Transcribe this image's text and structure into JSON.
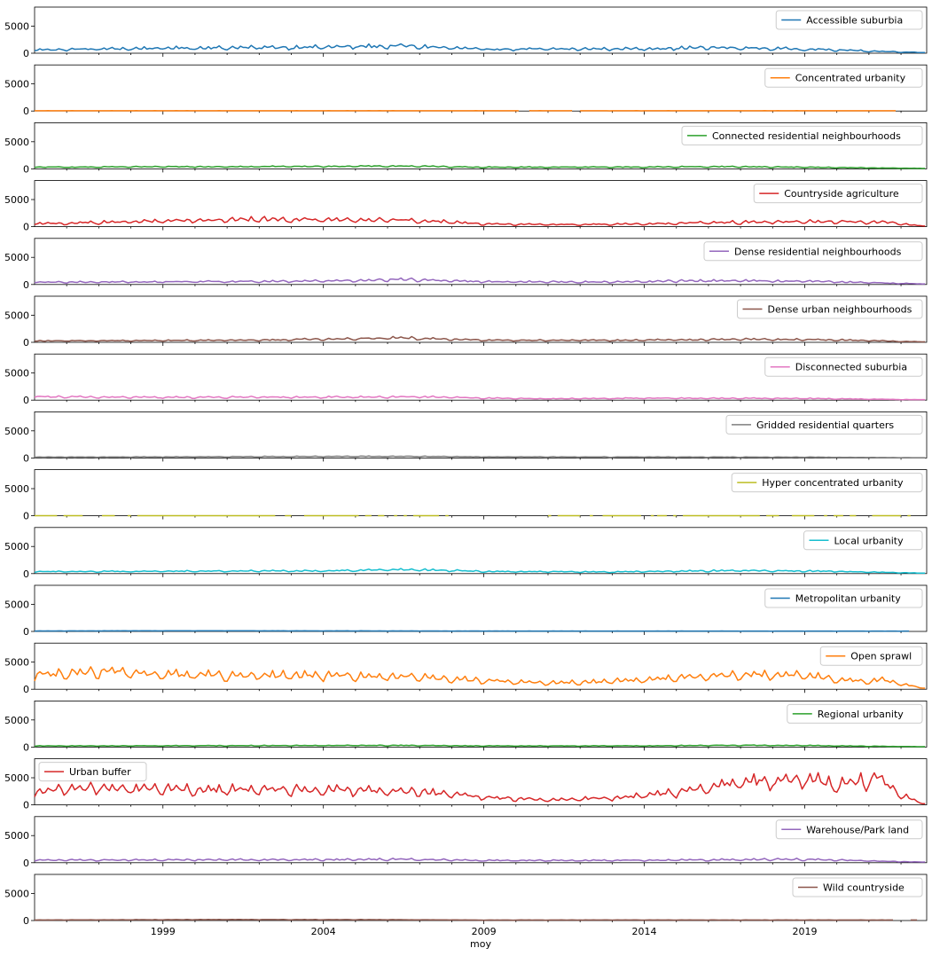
{
  "chart_data": {
    "type": "line",
    "layout": "16 stacked subplots sharing x axis (monthly, 1995–2022), each with its own legend",
    "xlabel": "moy",
    "x_tick_labels": [
      "1999",
      "2004",
      "2009",
      "2014",
      "2019"
    ],
    "x_tick_years": [
      1999,
      2004,
      2009,
      2014,
      2019
    ],
    "xlim_years": [
      1995,
      2022.8
    ],
    "ylim": [
      0,
      8500
    ],
    "y_tick_labels": [
      "0",
      "5000"
    ],
    "y_ticks": [
      0,
      5000
    ],
    "grid": false,
    "series": [
      {
        "name": "Accessible suburbia",
        "color": "#1f77b4",
        "legend": "top-right",
        "shape": [
          [
            1995,
            600
          ],
          [
            1999,
            900
          ],
          [
            2004,
            1100
          ],
          [
            2006.5,
            1300
          ],
          [
            2009,
            700
          ],
          [
            2014,
            800
          ],
          [
            2016,
            1000
          ],
          [
            2019,
            750
          ],
          [
            2021.5,
            300
          ],
          [
            2022.7,
            120
          ]
        ],
        "noise": 0.35,
        "seasonal": 0.25
      },
      {
        "name": "Concentrated urbanity",
        "color": "#ff7f0e",
        "legend": "top-right",
        "shape": [
          [
            1995,
            50
          ],
          [
            2022,
            50
          ]
        ],
        "noise": 0.2,
        "seasonal": 0.1,
        "end": 2021.9,
        "gaps": [
          [
            2010.15,
            2010.4
          ],
          [
            2011.8,
            2012.0
          ]
        ]
      },
      {
        "name": "Connected residential neighbourhoods",
        "color": "#2ca02c",
        "legend": "top-right",
        "shape": [
          [
            1995,
            300
          ],
          [
            2004,
            450
          ],
          [
            2006.5,
            500
          ],
          [
            2009,
            300
          ],
          [
            2014,
            330
          ],
          [
            2016.5,
            400
          ],
          [
            2019,
            300
          ],
          [
            2022.7,
            80
          ]
        ],
        "noise": 0.3,
        "seasonal": 0.2
      },
      {
        "name": "Countryside agriculture",
        "color": "#d62728",
        "legend": "top-right",
        "shape": [
          [
            1995,
            500
          ],
          [
            1999,
            1000
          ],
          [
            2002,
            1300
          ],
          [
            2004,
            1200
          ],
          [
            2007,
            1100
          ],
          [
            2009,
            500
          ],
          [
            2011,
            350
          ],
          [
            2014,
            500
          ],
          [
            2017,
            800
          ],
          [
            2020,
            900
          ],
          [
            2021.5,
            800
          ],
          [
            2022.7,
            100
          ]
        ],
        "noise": 0.35,
        "seasonal": 0.3
      },
      {
        "name": "Dense residential neighbourhoods",
        "color": "#9467bd",
        "legend": "top-right",
        "shape": [
          [
            1995,
            400
          ],
          [
            2003,
            550
          ],
          [
            2006.5,
            900
          ],
          [
            2009,
            500
          ],
          [
            2013,
            450
          ],
          [
            2016,
            700
          ],
          [
            2019,
            600
          ],
          [
            2022.7,
            100
          ]
        ],
        "noise": 0.35,
        "seasonal": 0.25
      },
      {
        "name": "Dense urban neighbourhoods",
        "color": "#8c564b",
        "legend": "top-right",
        "shape": [
          [
            1995,
            250
          ],
          [
            2002,
            400
          ],
          [
            2006.5,
            800
          ],
          [
            2009,
            400
          ],
          [
            2013,
            350
          ],
          [
            2017,
            550
          ],
          [
            2020,
            450
          ],
          [
            2022.7,
            80
          ]
        ],
        "noise": 0.35,
        "seasonal": 0.25
      },
      {
        "name": "Disconnected suburbia",
        "color": "#e377c2",
        "legend": "top-right",
        "shape": [
          [
            1995,
            600
          ],
          [
            1999,
            500
          ],
          [
            2005,
            550
          ],
          [
            2007,
            600
          ],
          [
            2009,
            350
          ],
          [
            2011,
            250
          ],
          [
            2014,
            350
          ],
          [
            2019,
            300
          ],
          [
            2022.7,
            80
          ]
        ],
        "noise": 0.3,
        "seasonal": 0.25
      },
      {
        "name": "Gridded residential quarters",
        "color": "#7f7f7f",
        "legend": "top-right",
        "shape": [
          [
            1995,
            150
          ],
          [
            2006.5,
            300
          ],
          [
            2009,
            200
          ],
          [
            2014,
            180
          ],
          [
            2019,
            150
          ],
          [
            2022.7,
            40
          ]
        ],
        "noise": 0.3,
        "seasonal": 0.2
      },
      {
        "name": "Hyper concentrated urbanity",
        "color": "#bcbd22",
        "legend": "top-right",
        "shape": [
          [
            1995,
            20
          ],
          [
            2022,
            20
          ]
        ],
        "noise": 0,
        "seasonal": 0,
        "segments": [
          [
            1995.0,
            1995.7
          ],
          [
            1995.9,
            1996.5
          ],
          [
            1997.1,
            1997.5
          ],
          [
            1997.9,
            1998.0
          ],
          [
            1998.2,
            2002.5
          ],
          [
            2002.8,
            2003.0
          ],
          [
            2003.4,
            2005.1
          ],
          [
            2005.3,
            2005.5
          ],
          [
            2005.7,
            2005.9
          ],
          [
            2006.2,
            2006.3
          ],
          [
            2006.5,
            2006.6
          ],
          [
            2006.8,
            2007.6
          ],
          [
            2007.8,
            2007.9
          ],
          [
            2011.0,
            2011.1
          ],
          [
            2011.3,
            2012.0
          ],
          [
            2012.3,
            2012.4
          ],
          [
            2012.7,
            2013.9
          ],
          [
            2014.2,
            2014.3
          ],
          [
            2014.4,
            2014.7
          ],
          [
            2014.9,
            2015.0
          ],
          [
            2015.2,
            2017.6
          ],
          [
            2017.8,
            2018.2
          ],
          [
            2018.6,
            2019.3
          ],
          [
            2019.6,
            2019.7
          ],
          [
            2019.9,
            2020.2
          ],
          [
            2020.4,
            2020.6
          ],
          [
            2021.1,
            2022.0
          ],
          [
            2022.2,
            2022.3
          ]
        ]
      },
      {
        "name": "Local urbanity",
        "color": "#17becf",
        "legend": "top-right",
        "shape": [
          [
            1995,
            350
          ],
          [
            2004,
            500
          ],
          [
            2006.5,
            750
          ],
          [
            2009,
            400
          ],
          [
            2013,
            300
          ],
          [
            2017,
            550
          ],
          [
            2020,
            400
          ],
          [
            2022.7,
            80
          ]
        ],
        "noise": 0.3,
        "seasonal": 0.25
      },
      {
        "name": "Metropolitan urbanity",
        "color": "#1f77b4",
        "legend": "top-right",
        "shape": [
          [
            1995,
            80
          ],
          [
            2000,
            120
          ],
          [
            2009,
            70
          ],
          [
            2022.3,
            60
          ]
        ],
        "noise": 0.15,
        "seasonal": 0.1,
        "end": 2022.3
      },
      {
        "name": "Open sprawl",
        "color": "#ff7f0e",
        "legend": "top-right",
        "shape": [
          [
            1995,
            2500
          ],
          [
            1997,
            3200
          ],
          [
            1999,
            2600
          ],
          [
            2004,
            2400
          ],
          [
            2007,
            2200
          ],
          [
            2009,
            1500
          ],
          [
            2011,
            1100
          ],
          [
            2013,
            1400
          ],
          [
            2016,
            2400
          ],
          [
            2019,
            2600
          ],
          [
            2020.3,
            1500
          ],
          [
            2021.5,
            1600
          ],
          [
            2022.7,
            150
          ]
        ],
        "noise": 0.25,
        "seasonal": 0.3
      },
      {
        "name": "Regional urbanity",
        "color": "#2ca02c",
        "legend": "top-right",
        "shape": [
          [
            1995,
            200
          ],
          [
            2006.5,
            300
          ],
          [
            2009,
            200
          ],
          [
            2014,
            220
          ],
          [
            2017,
            330
          ],
          [
            2019,
            280
          ],
          [
            2022.7,
            60
          ]
        ],
        "noise": 0.25,
        "seasonal": 0.2
      },
      {
        "name": "Urban buffer",
        "color": "#d62728",
        "legend": "top-left",
        "shape": [
          [
            1995,
            2400
          ],
          [
            1997,
            3100
          ],
          [
            1999,
            2700
          ],
          [
            2004,
            2700
          ],
          [
            2007,
            2300
          ],
          [
            2009,
            1300
          ],
          [
            2011,
            900
          ],
          [
            2013,
            1200
          ],
          [
            2015,
            2200
          ],
          [
            2017,
            4000
          ],
          [
            2019,
            4600
          ],
          [
            2020.3,
            3600
          ],
          [
            2021.3,
            4800
          ],
          [
            2022.0,
            1800
          ],
          [
            2022.7,
            150
          ]
        ],
        "noise": 0.28,
        "seasonal": 0.3
      },
      {
        "name": "Warehouse/Park land",
        "color": "#9467bd",
        "legend": "top-right",
        "shape": [
          [
            1995,
            450
          ],
          [
            1999,
            500
          ],
          [
            2004,
            550
          ],
          [
            2006.5,
            600
          ],
          [
            2009,
            400
          ],
          [
            2013,
            400
          ],
          [
            2017,
            550
          ],
          [
            2019,
            600
          ],
          [
            2022.7,
            100
          ]
        ],
        "noise": 0.3,
        "seasonal": 0.25
      },
      {
        "name": "Wild countryside",
        "color": "#8c564b",
        "legend": "top-right",
        "shape": [
          [
            1995,
            100
          ],
          [
            2001,
            180
          ],
          [
            2006.5,
            150
          ],
          [
            2009,
            90
          ],
          [
            2014,
            100
          ],
          [
            2021.8,
            90
          ]
        ],
        "noise": 0.2,
        "seasonal": 0.15,
        "end": 2021.8,
        "extra_segments": [
          [
            2022.3,
            2022.5
          ]
        ]
      }
    ]
  }
}
